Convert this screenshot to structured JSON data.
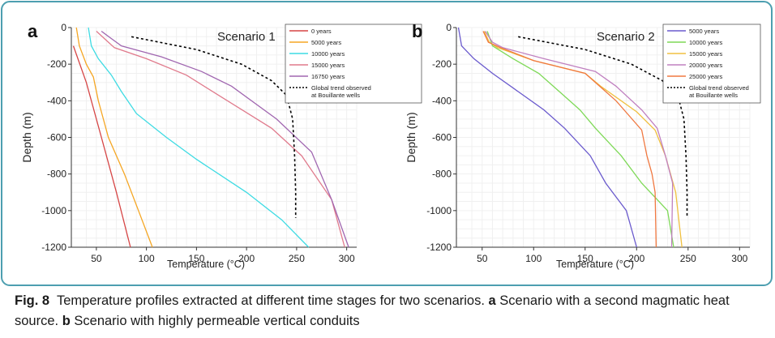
{
  "caption": {
    "label": "Fig. 8",
    "main": "Temperature profiles extracted at different time stages for two scenarios.",
    "part_a_label": "a",
    "part_a_text": "Scenario with a second magmatic heat source.",
    "part_b_label": "b",
    "part_b_text": "Scenario with highly permeable vertical conduits"
  },
  "colors": {
    "frame_border": "#4d9fb0",
    "caption_background": "#ffffff"
  },
  "chart_data": [
    {
      "type": "line",
      "panel_label": "a",
      "title": "Scenario 1",
      "xlabel": "Temperature (°C)",
      "ylabel": "Depth (m)",
      "xlim": [
        25,
        310
      ],
      "ylim": [
        -1200,
        0
      ],
      "xticks": [
        50,
        100,
        150,
        200,
        250,
        300
      ],
      "yticks": [
        0,
        -200,
        -400,
        -600,
        -800,
        -1000,
        -1200
      ],
      "ytick_labels": [
        "0",
        "-200",
        "-400",
        "-600",
        "-800",
        "-1000",
        "-1200"
      ],
      "grid": true,
      "legend_position": "top-right",
      "series": [
        {
          "name": "0 years",
          "color": "#d64545",
          "dashed": false,
          "points": [
            [
              27,
              -100
            ],
            [
              40,
              -300
            ],
            [
              55,
              -600
            ],
            [
              70,
              -900
            ],
            [
              84,
              -1200
            ]
          ]
        },
        {
          "name": "5000 years",
          "color": "#f5a623",
          "dashed": false,
          "points": [
            [
              30,
              0
            ],
            [
              33,
              -100
            ],
            [
              40,
              -200
            ],
            [
              47,
              -270
            ],
            [
              52,
              -400
            ],
            [
              62,
              -600
            ],
            [
              78,
              -800
            ],
            [
              92,
              -1000
            ],
            [
              106,
              -1200
            ]
          ]
        },
        {
          "name": "10000 years",
          "color": "#3ddbe3",
          "dashed": false,
          "points": [
            [
              42,
              0
            ],
            [
              45,
              -100
            ],
            [
              52,
              -170
            ],
            [
              65,
              -260
            ],
            [
              75,
              -350
            ],
            [
              90,
              -470
            ],
            [
              120,
              -600
            ],
            [
              150,
              -720
            ],
            [
              200,
              -900
            ],
            [
              235,
              -1050
            ],
            [
              262,
              -1200
            ]
          ]
        },
        {
          "name": "15000 years",
          "color": "#e07a8c",
          "dashed": false,
          "points": [
            [
              50,
              -20
            ],
            [
              58,
              -60
            ],
            [
              68,
              -110
            ],
            [
              100,
              -170
            ],
            [
              140,
              -260
            ],
            [
              175,
              -380
            ],
            [
              225,
              -550
            ],
            [
              255,
              -700
            ],
            [
              285,
              -940
            ],
            [
              298,
              -1200
            ]
          ]
        },
        {
          "name": "16750 years",
          "color": "#a066b0",
          "dashed": false,
          "points": [
            [
              55,
              -20
            ],
            [
              65,
              -60
            ],
            [
              75,
              -100
            ],
            [
              115,
              -160
            ],
            [
              155,
              -240
            ],
            [
              185,
              -320
            ],
            [
              230,
              -500
            ],
            [
              265,
              -680
            ],
            [
              285,
              -940
            ],
            [
              302,
              -1200
            ]
          ]
        },
        {
          "name": "Global trend observed at Bouillante wells",
          "color": "#000000",
          "dashed": true,
          "points": [
            [
              85,
              -50
            ],
            [
              150,
              -120
            ],
            [
              195,
              -200
            ],
            [
              225,
              -290
            ],
            [
              240,
              -370
            ],
            [
              246,
              -500
            ],
            [
              248,
              -700
            ],
            [
              249,
              -900
            ],
            [
              249,
              -1040
            ]
          ]
        }
      ]
    },
    {
      "type": "line",
      "panel_label": "b",
      "title": "Scenario 2",
      "xlabel": "Temperature (°C)",
      "ylabel": "Depth (m)",
      "xlim": [
        25,
        310
      ],
      "ylim": [
        -1200,
        0
      ],
      "xticks": [
        50,
        100,
        150,
        200,
        250,
        300
      ],
      "yticks": [
        0,
        -200,
        -400,
        -600,
        -800,
        -1000,
        -1200
      ],
      "ytick_labels": [
        "0",
        "-200",
        "-400",
        "-600",
        "-800",
        "-1000",
        "-1200"
      ],
      "grid": true,
      "legend_position": "top-right",
      "series": [
        {
          "name": "5000 years",
          "color": "#6a5acd",
          "dashed": false,
          "points": [
            [
              27,
              0
            ],
            [
              30,
              -100
            ],
            [
              42,
              -170
            ],
            [
              60,
              -250
            ],
            [
              85,
              -350
            ],
            [
              110,
              -450
            ],
            [
              130,
              -550
            ],
            [
              155,
              -700
            ],
            [
              170,
              -850
            ],
            [
              190,
              -1000
            ],
            [
              200,
              -1200
            ]
          ]
        },
        {
          "name": "10000 years",
          "color": "#7ed957",
          "dashed": false,
          "points": [
            [
              55,
              -20
            ],
            [
              60,
              -100
            ],
            [
              80,
              -170
            ],
            [
              105,
              -250
            ],
            [
              125,
              -350
            ],
            [
              145,
              -450
            ],
            [
              160,
              -550
            ],
            [
              185,
              -700
            ],
            [
              205,
              -850
            ],
            [
              230,
              -1000
            ],
            [
              236,
              -1200
            ]
          ]
        },
        {
          "name": "15000 years",
          "color": "#f0c040",
          "dashed": false,
          "points": [
            [
              52,
              -20
            ],
            [
              57,
              -80
            ],
            [
              65,
              -110
            ],
            [
              100,
              -180
            ],
            [
              150,
              -250
            ],
            [
              165,
              -320
            ],
            [
              200,
              -460
            ],
            [
              218,
              -560
            ],
            [
              228,
              -700
            ],
            [
              238,
              -900
            ],
            [
              244,
              -1200
            ]
          ]
        },
        {
          "name": "20000 years",
          "color": "#c080c0",
          "dashed": false,
          "points": [
            [
              53,
              -20
            ],
            [
              60,
              -80
            ],
            [
              70,
              -110
            ],
            [
              110,
              -170
            ],
            [
              160,
              -240
            ],
            [
              180,
              -320
            ],
            [
              205,
              -450
            ],
            [
              220,
              -550
            ],
            [
              228,
              -700
            ],
            [
              235,
              -850
            ],
            [
              234,
              -1200
            ]
          ]
        },
        {
          "name": "25000 years",
          "color": "#f07840",
          "dashed": false,
          "points": [
            [
              51,
              -20
            ],
            [
              56,
              -80
            ],
            [
              68,
              -110
            ],
            [
              100,
              -180
            ],
            [
              150,
              -250
            ],
            [
              180,
              -400
            ],
            [
              205,
              -560
            ],
            [
              210,
              -700
            ],
            [
              215,
              -800
            ],
            [
              218,
              -900
            ],
            [
              219,
              -1200
            ]
          ]
        },
        {
          "name": "Global trend observed at Bouillante wells",
          "color": "#000000",
          "dashed": true,
          "points": [
            [
              85,
              -50
            ],
            [
              150,
              -120
            ],
            [
              195,
              -200
            ],
            [
              225,
              -290
            ],
            [
              240,
              -370
            ],
            [
              246,
              -500
            ],
            [
              248,
              -700
            ],
            [
              249,
              -900
            ],
            [
              249,
              -1040
            ]
          ]
        }
      ]
    }
  ]
}
